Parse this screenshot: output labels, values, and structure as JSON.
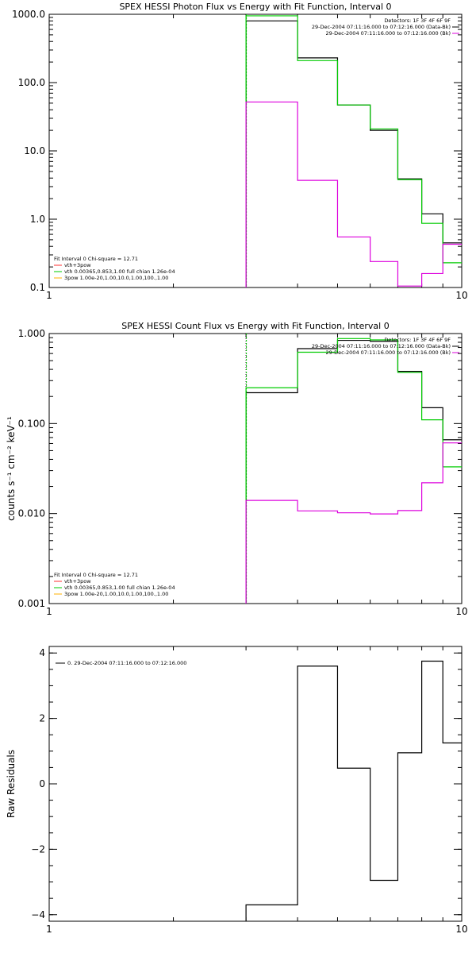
{
  "chart_data": [
    {
      "type": "line",
      "title": "SPEX HESSI Photon Flux vs Energy with Fit Function, Interval 0",
      "xscale": "log",
      "yscale": "log",
      "xlim": [
        1,
        10
      ],
      "ylim": [
        0.1,
        1000
      ],
      "xticks": [
        {
          "v": 1,
          "label": "1"
        },
        {
          "v": 10,
          "label": "10"
        }
      ],
      "yticks": [
        {
          "v": 0.1,
          "label": "0.1"
        },
        {
          "v": 1,
          "label": "1.0"
        },
        {
          "v": 10,
          "label": "10.0"
        },
        {
          "v": 100,
          "label": "100.0"
        },
        {
          "v": 1000,
          "label": "1000.0"
        }
      ],
      "vline": 3,
      "edges": [
        3,
        4,
        5,
        6,
        7,
        8,
        9,
        10
      ],
      "series": [
        {
          "color": "#000000",
          "values": [
            800,
            230,
            47,
            20,
            3.9,
            1.2,
            0.45
          ]
        },
        {
          "color": "#00cc00",
          "values": [
            950,
            210,
            47,
            21,
            3.8,
            0.87,
            0.23
          ]
        },
        {
          "color": "#dd00dd",
          "values": [
            52,
            3.7,
            0.55,
            0.24,
            0.105,
            0.16,
            0.43
          ]
        }
      ],
      "legend_tr": [
        {
          "text": "Detectors: 1F 3F 4F 6F 9F",
          "color": ""
        },
        {
          "text": "29-Dec-2004 07:11:16.000 to 07:12:16.000 (Data-Bk)",
          "color": "#000000"
        },
        {
          "text": "29-Dec-2004 07:11:16.000 to 07:12:16.000 (Bk)",
          "color": "#dd00dd"
        }
      ],
      "legend_bl": [
        {
          "text": "Fit Interval 0   Chi-square = 12.71",
          "color": ""
        },
        {
          "text": "vth+3pow",
          "color": "#ff3030"
        },
        {
          "text": "vth 0.00365,0.853,1.00   full chian 1.26e-04",
          "color": "#00cc00"
        },
        {
          "text": "3pow 1.00e-20,1.00,10.0,1.00,100.,1.00",
          "color": "#ffb000"
        }
      ]
    },
    {
      "type": "line",
      "title": "SPEX HESSI Count Flux vs Energy with Fit Function, Interval 0",
      "ylabel": "counts s⁻¹ cm⁻² keV⁻¹",
      "xscale": "log",
      "yscale": "log",
      "xlim": [
        1,
        10
      ],
      "ylim": [
        0.001,
        1
      ],
      "xticks": [
        {
          "v": 1,
          "label": "1"
        },
        {
          "v": 10,
          "label": "10"
        }
      ],
      "yticks": [
        {
          "v": 0.001,
          "label": "0.001"
        },
        {
          "v": 0.01,
          "label": "0.010"
        },
        {
          "v": 0.1,
          "label": "0.100"
        },
        {
          "v": 1,
          "label": "1.000"
        }
      ],
      "vline": 3,
      "edges": [
        3,
        4,
        5,
        6,
        7,
        8,
        9,
        10
      ],
      "series": [
        {
          "color": "#000000",
          "values": [
            0.22,
            0.68,
            0.84,
            0.82,
            0.38,
            0.15,
            0.066
          ]
        },
        {
          "color": "#00cc00",
          "values": [
            0.25,
            0.62,
            0.88,
            0.85,
            0.37,
            0.11,
            0.033
          ]
        },
        {
          "color": "#dd00dd",
          "values": [
            0.014,
            0.0107,
            0.0102,
            0.0099,
            0.0108,
            0.022,
            0.061
          ]
        }
      ],
      "legend_tr": [
        {
          "text": "Detectors: 1F 3F 4F 6F 9F",
          "color": ""
        },
        {
          "text": "29-Dec-2004 07:11:16.000 to 07:12:16.000 (Data-Bk)",
          "color": "#000000"
        },
        {
          "text": "29-Dec-2004 07:11:16.000 to 07:12:16.000 (Bk)",
          "color": "#dd00dd"
        }
      ],
      "legend_bl": [
        {
          "text": "Fit Interval 0   Chi-square = 12.71",
          "color": ""
        },
        {
          "text": "vth+3pow",
          "color": "#ff3030"
        },
        {
          "text": "vth 0.00365,0.853,1.00   full chian 1.26e-04",
          "color": "#00cc00"
        },
        {
          "text": "3pow 1.00e-20,1.00,10.0,1.00,100.,1.00",
          "color": "#ffb000"
        }
      ]
    },
    {
      "type": "line",
      "title": "",
      "ylabel": "Raw Residuals",
      "xscale": "log",
      "yscale": "linear",
      "xlim": [
        1,
        10
      ],
      "ylim": [
        -4.2,
        4.2
      ],
      "xticks": [
        {
          "v": 1,
          "label": "1"
        },
        {
          "v": 10,
          "label": "10"
        }
      ],
      "yticks": [
        {
          "v": -4,
          "label": "−4"
        },
        {
          "v": -2,
          "label": "−2"
        },
        {
          "v": 0,
          "label": "0"
        },
        {
          "v": 2,
          "label": "2"
        },
        {
          "v": 4,
          "label": "4"
        }
      ],
      "edges": [
        3,
        4,
        5,
        6,
        7,
        8,
        9,
        10
      ],
      "series": [
        {
          "color": "#000000",
          "values": [
            -3.7,
            3.6,
            0.48,
            -2.95,
            0.95,
            3.75,
            1.25
          ]
        }
      ],
      "legend_tr": [],
      "legend_bl": [],
      "legend_tl": [
        {
          "text": "0. 29-Dec-2004 07:11:16.000 to 07:12:16.000",
          "color": "#000000"
        }
      ]
    }
  ]
}
